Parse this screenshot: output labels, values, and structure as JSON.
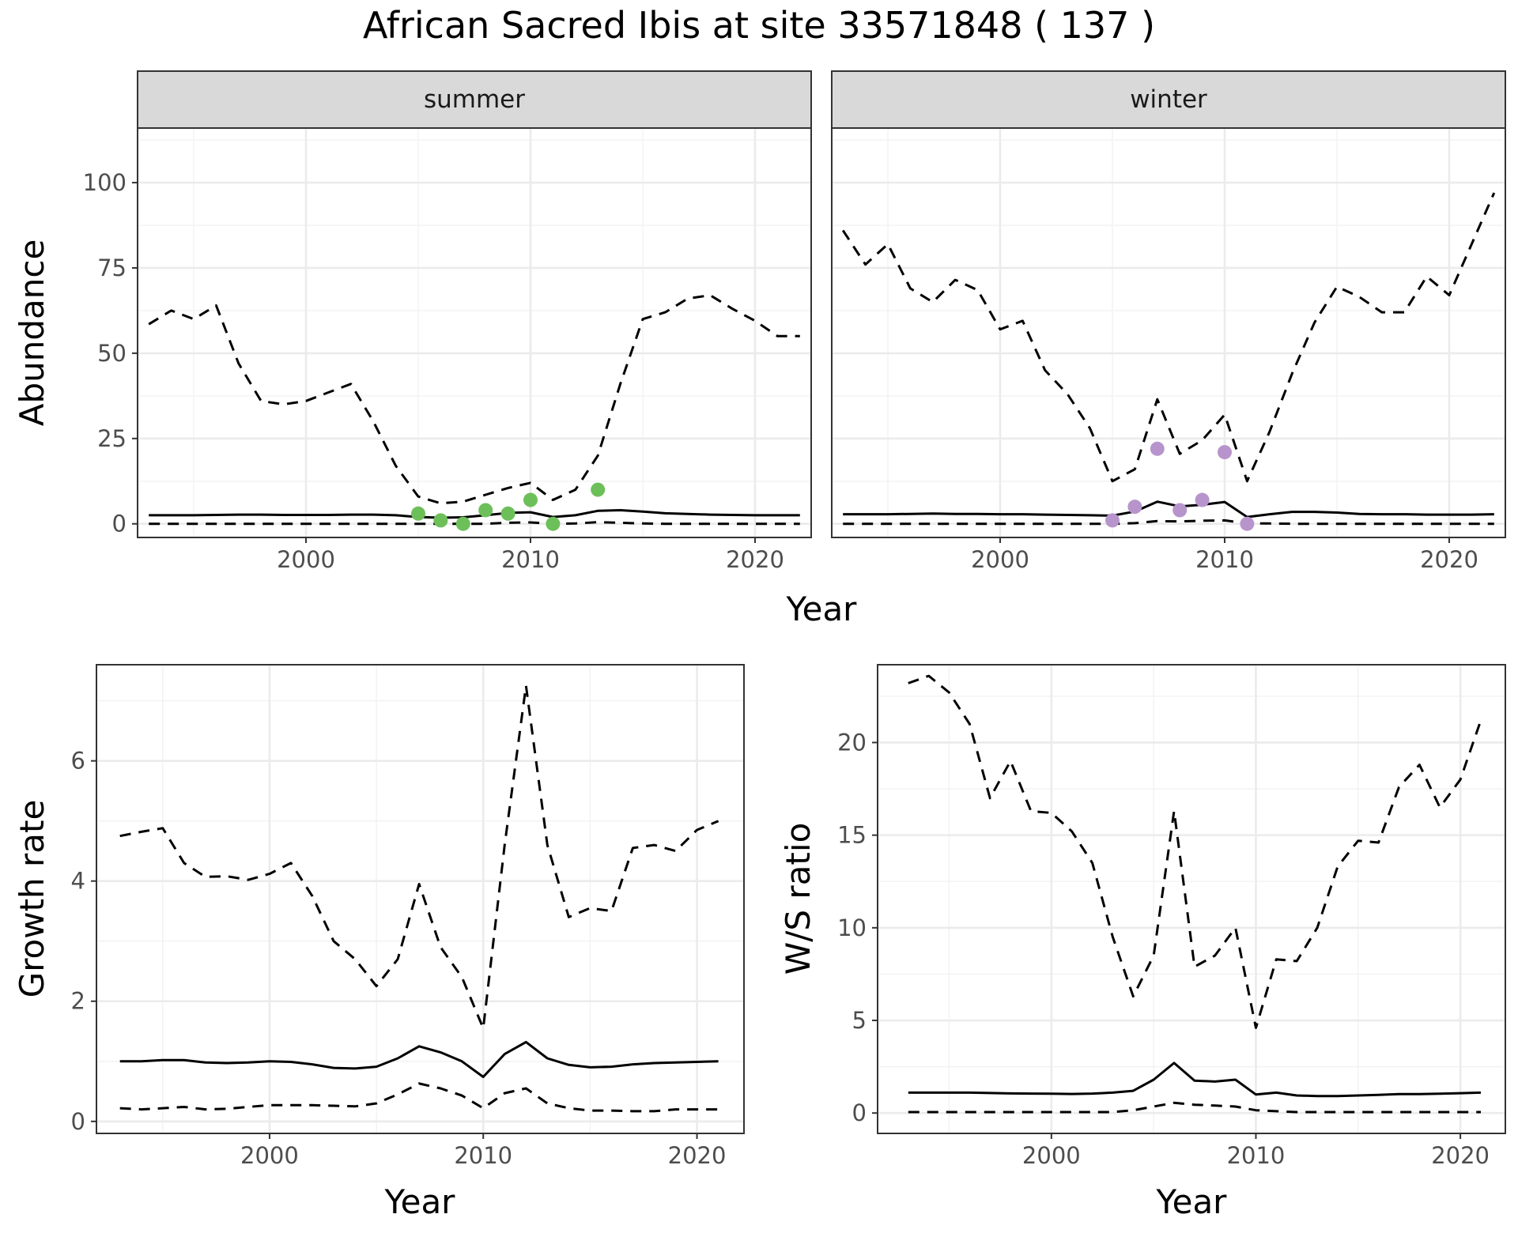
{
  "title": "African Sacred Ibis at site 33571848 ( 137 )",
  "colors": {
    "summer_points": "#6dbf5a",
    "winter_points": "#b795cc",
    "line": "#000000",
    "strip_fill": "#d9d9d9",
    "grid_major": "#ebebeb",
    "grid_minor": "#f2f2f2",
    "panel_border": "#333333"
  },
  "chart_data": [
    {
      "id": "abundance-summer",
      "type": "line",
      "facet": "summer",
      "xlabel": "",
      "ylabel": "Abundance",
      "xlim": [
        1992.5,
        2022.5
      ],
      "ylim": [
        -4,
        116
      ],
      "xticks": [
        2000,
        2010,
        2020
      ],
      "yticks": [
        0,
        25,
        50,
        75,
        100
      ],
      "x": [
        1993,
        1994,
        1995,
        1996,
        1997,
        1998,
        1999,
        2000,
        2001,
        2002,
        2003,
        2004,
        2005,
        2006,
        2007,
        2008,
        2009,
        2010,
        2011,
        2012,
        2013,
        2014,
        2015,
        2016,
        2017,
        2018,
        2019,
        2020,
        2021,
        2022
      ],
      "series": [
        {
          "role": "upper",
          "style": "dashed",
          "values": [
            58.5,
            62.5,
            60,
            64,
            47,
            36,
            35,
            36,
            38.5,
            41,
            30,
            17,
            8,
            6,
            6.5,
            8.5,
            10.5,
            12,
            7,
            10,
            20,
            41,
            60,
            62,
            66,
            67,
            63,
            59.5,
            55,
            55
          ]
        },
        {
          "role": "mean",
          "style": "solid",
          "values": [
            2.5,
            2.5,
            2.5,
            2.6,
            2.7,
            2.7,
            2.6,
            2.6,
            2.6,
            2.7,
            2.7,
            2.5,
            2,
            1.8,
            1.9,
            2.5,
            3.2,
            3.4,
            2,
            2.5,
            3.8,
            4,
            3.6,
            3.1,
            2.9,
            2.7,
            2.6,
            2.5,
            2.5,
            2.5
          ]
        },
        {
          "role": "lower",
          "style": "dashed",
          "values": [
            0,
            0,
            0,
            0,
            0,
            0,
            0,
            0,
            0,
            0,
            0,
            0,
            0,
            0,
            0,
            0,
            0.3,
            0.4,
            0,
            0.1,
            0.5,
            0.3,
            0.1,
            0,
            0,
            0,
            0,
            0,
            0,
            0
          ]
        }
      ],
      "points": [
        {
          "x": 2005,
          "y": 3
        },
        {
          "x": 2006,
          "y": 1
        },
        {
          "x": 2007,
          "y": 0
        },
        {
          "x": 2008,
          "y": 4
        },
        {
          "x": 2009,
          "y": 3
        },
        {
          "x": 2010,
          "y": 7
        },
        {
          "x": 2011,
          "y": 0
        },
        {
          "x": 2013,
          "y": 10
        }
      ]
    },
    {
      "id": "abundance-winter",
      "type": "line",
      "facet": "winter",
      "xlabel": "",
      "ylabel": "",
      "xlim": [
        1992.5,
        2022.5
      ],
      "ylim": [
        -4,
        116
      ],
      "xticks": [
        2000,
        2010,
        2020
      ],
      "yticks": [
        0,
        25,
        50,
        75,
        100
      ],
      "x": [
        1993,
        1994,
        1995,
        1996,
        1997,
        1998,
        1999,
        2000,
        2001,
        2002,
        2003,
        2004,
        2005,
        2006,
        2007,
        2008,
        2009,
        2010,
        2011,
        2012,
        2013,
        2014,
        2015,
        2016,
        2017,
        2018,
        2019,
        2020,
        2021,
        2022
      ],
      "series": [
        {
          "role": "upper",
          "style": "dashed",
          "values": [
            86,
            76,
            82,
            69,
            65,
            71.5,
            68.5,
            57,
            59.5,
            45,
            38,
            28,
            12.5,
            16,
            36.5,
            20.5,
            24.5,
            32,
            12.5,
            27,
            44,
            59,
            69.5,
            66.5,
            62,
            62,
            72.5,
            67,
            82,
            97
          ]
        },
        {
          "role": "mean",
          "style": "solid",
          "values": [
            2.8,
            2.8,
            2.8,
            2.9,
            3,
            2.9,
            2.9,
            2.8,
            2.8,
            2.7,
            2.6,
            2.5,
            2.4,
            3.6,
            6.5,
            5.1,
            5.6,
            6.4,
            2,
            2.8,
            3.5,
            3.5,
            3.3,
            2.9,
            2.8,
            2.8,
            2.7,
            2.7,
            2.7,
            2.8
          ]
        },
        {
          "role": "lower",
          "style": "dashed",
          "values": [
            0,
            0,
            0,
            0,
            0,
            0,
            0,
            0,
            0,
            0,
            0,
            0,
            0,
            0.2,
            0.8,
            0.7,
            0.9,
            1,
            0.1,
            0.1,
            0,
            0,
            0,
            0,
            0,
            0,
            0,
            0,
            0,
            0
          ]
        }
      ],
      "points": [
        {
          "x": 2005,
          "y": 1
        },
        {
          "x": 2006,
          "y": 5
        },
        {
          "x": 2007,
          "y": 22
        },
        {
          "x": 2008,
          "y": 4
        },
        {
          "x": 2009,
          "y": 7
        },
        {
          "x": 2010,
          "y": 21
        },
        {
          "x": 2011,
          "y": 0
        }
      ]
    },
    {
      "id": "growth-rate",
      "type": "line",
      "xlabel": "Year",
      "ylabel": "Growth rate",
      "xlim": [
        1991.9,
        2022.2
      ],
      "ylim": [
        -0.2,
        7.6
      ],
      "xticks": [
        2000,
        2010,
        2020
      ],
      "yticks": [
        0,
        2,
        4,
        6
      ],
      "x": [
        1993,
        1994,
        1995,
        1996,
        1997,
        1998,
        1999,
        2000,
        2001,
        2002,
        2003,
        2004,
        2005,
        2006,
        2007,
        2008,
        2009,
        2010,
        2011,
        2012,
        2013,
        2014,
        2015,
        2016,
        2017,
        2018,
        2019,
        2020,
        2021
      ],
      "series": [
        {
          "role": "upper",
          "style": "dashed",
          "values": [
            4.75,
            4.82,
            4.88,
            4.3,
            4.07,
            4.08,
            4.02,
            4.12,
            4.3,
            3.75,
            3,
            2.7,
            2.25,
            2.7,
            3.95,
            2.9,
            2.4,
            1.55,
            4.6,
            7.25,
            4.6,
            3.4,
            3.55,
            3.5,
            4.55,
            4.6,
            4.5,
            4.85,
            5
          ]
        },
        {
          "role": "mean",
          "style": "solid",
          "values": [
            1,
            1,
            1.02,
            1.02,
            0.98,
            0.97,
            0.98,
            1,
            0.99,
            0.95,
            0.89,
            0.88,
            0.91,
            1.05,
            1.25,
            1.15,
            1,
            0.74,
            1.12,
            1.32,
            1.05,
            0.94,
            0.9,
            0.91,
            0.95,
            0.97,
            0.98,
            0.99,
            1
          ]
        },
        {
          "role": "lower",
          "style": "dashed",
          "values": [
            0.22,
            0.2,
            0.22,
            0.24,
            0.2,
            0.21,
            0.24,
            0.27,
            0.27,
            0.27,
            0.26,
            0.25,
            0.3,
            0.45,
            0.63,
            0.55,
            0.43,
            0.22,
            0.47,
            0.55,
            0.3,
            0.22,
            0.18,
            0.18,
            0.17,
            0.17,
            0.2,
            0.2,
            0.2
          ]
        }
      ]
    },
    {
      "id": "ws-ratio",
      "type": "line",
      "xlabel": "Year",
      "ylabel": "W/S ratio",
      "xlim": [
        1991.5,
        2022.2
      ],
      "ylim": [
        -1.1,
        24.2
      ],
      "xticks": [
        2000,
        2010,
        2020
      ],
      "yticks": [
        0,
        5,
        10,
        15,
        20
      ],
      "x": [
        1993,
        1994,
        1995,
        1996,
        1997,
        1998,
        1999,
        2000,
        2001,
        2002,
        2003,
        2004,
        2005,
        2006,
        2007,
        2008,
        2009,
        2010,
        2011,
        2012,
        2013,
        2014,
        2015,
        2016,
        2017,
        2018,
        2019,
        2020,
        2021
      ],
      "series": [
        {
          "role": "upper",
          "style": "dashed",
          "values": [
            23.2,
            23.6,
            22.7,
            21,
            17,
            19,
            16.3,
            16.2,
            15.2,
            13.5,
            9.5,
            6.3,
            8.5,
            16.3,
            7.9,
            8.5,
            10,
            4.6,
            8.3,
            8.2,
            10,
            13.3,
            14.7,
            14.6,
            17.6,
            18.8,
            16.5,
            18,
            21.2
          ]
        },
        {
          "role": "mean",
          "style": "solid",
          "values": [
            1.1,
            1.1,
            1.1,
            1.1,
            1.08,
            1.06,
            1.05,
            1.04,
            1.03,
            1.05,
            1.1,
            1.2,
            1.8,
            2.7,
            1.75,
            1.7,
            1.8,
            1,
            1.1,
            0.95,
            0.92,
            0.92,
            0.95,
            0.98,
            1.02,
            1.02,
            1.04,
            1.07,
            1.1
          ]
        },
        {
          "role": "lower",
          "style": "dashed",
          "values": [
            0.05,
            0.05,
            0.05,
            0.05,
            0.05,
            0.05,
            0.05,
            0.05,
            0.05,
            0.05,
            0.05,
            0.15,
            0.35,
            0.55,
            0.45,
            0.4,
            0.35,
            0.15,
            0.1,
            0.05,
            0.05,
            0.05,
            0.05,
            0.05,
            0.05,
            0.05,
            0.05,
            0.05,
            0.05
          ]
        }
      ]
    }
  ],
  "top_xlabel": "Year"
}
